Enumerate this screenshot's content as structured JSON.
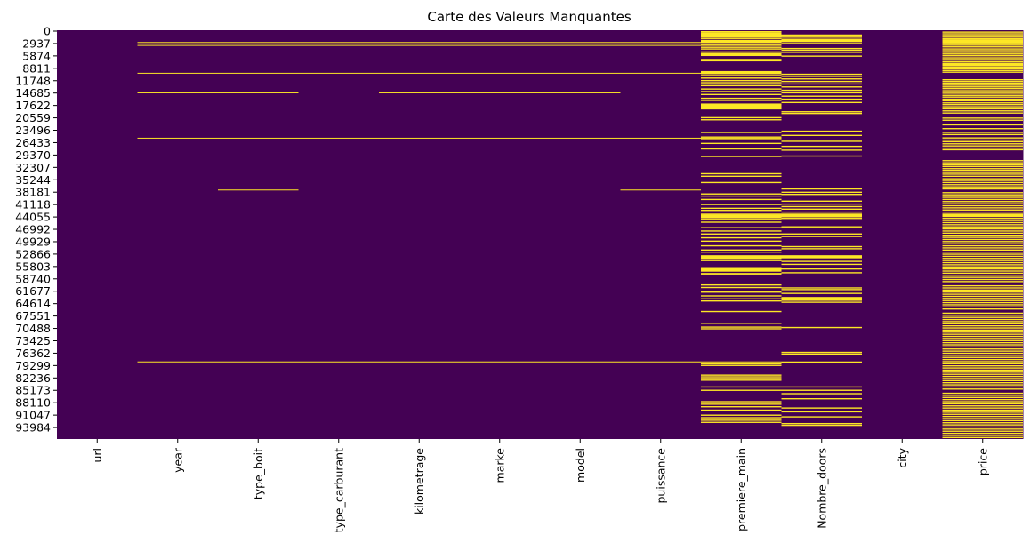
{
  "chart_data": {
    "type": "heatmap",
    "title": "Carte des Valeurs Manquantes",
    "columns": [
      "url",
      "year",
      "type_boit",
      "type_carburant",
      "kilometrage",
      "marke",
      "model",
      "puissance",
      "premiere_main",
      "Nombre_doors",
      "city",
      "price"
    ],
    "row_count": 97000,
    "y_tick_labels": [
      "0",
      "2937",
      "5874",
      "8811",
      "11748",
      "14685",
      "17622",
      "20559",
      "23496",
      "26433",
      "29370",
      "32307",
      "35244",
      "38181",
      "41118",
      "44055",
      "46992",
      "49929",
      "52866",
      "55803",
      "58740",
      "61677",
      "64614",
      "67551",
      "70488",
      "73425",
      "76362",
      "79299",
      "82236",
      "85173",
      "88110",
      "91047",
      "93984"
    ],
    "legend": "none",
    "colors": {
      "present": "#440154",
      "missing": "#fde725"
    },
    "missing_bands": [
      {
        "row": 2800,
        "columns": [
          "year",
          "type_boit",
          "type_carburant",
          "kilometrage",
          "marke",
          "model",
          "puissance",
          "premiere_main"
        ]
      },
      {
        "row": 3500,
        "columns": [
          "year",
          "type_boit",
          "type_carburant",
          "kilometrage",
          "marke",
          "model",
          "puissance",
          "premiere_main"
        ]
      },
      {
        "row": 10100,
        "columns": [
          "year",
          "type_boit",
          "type_carburant",
          "kilometrage",
          "marke",
          "model",
          "puissance",
          "premiere_main"
        ]
      },
      {
        "row": 14750,
        "columns": [
          "year",
          "type_boit"
        ]
      },
      {
        "row": 14750,
        "columns": [
          "kilometrage",
          "marke",
          "model"
        ]
      },
      {
        "row": 25500,
        "columns": [
          "year",
          "type_boit",
          "type_carburant",
          "kilometrage",
          "marke",
          "model",
          "puissance",
          "premiere_main"
        ]
      },
      {
        "row": 37800,
        "columns": [
          "type_boit"
        ]
      },
      {
        "row": 37800,
        "columns": [
          "puissance"
        ]
      },
      {
        "row": 78600,
        "columns": [
          "year",
          "type_boit",
          "type_carburant",
          "kilometrage",
          "marke",
          "model",
          "puissance",
          "premiere_main"
        ]
      }
    ],
    "column_missing_rows": {
      "premiere_main": [
        200,
        500,
        800,
        1300,
        1800,
        2300,
        3200,
        3900,
        4300,
        5000,
        5500,
        6800,
        7100,
        9800,
        10100,
        10600,
        11200,
        11800,
        12300,
        13000,
        13800,
        14400,
        15100,
        16000,
        16500,
        17500,
        17900,
        18100,
        18500,
        20600,
        21100,
        24100,
        25200,
        25800,
        26700,
        28000,
        29800,
        33900,
        34500,
        36000,
        38700,
        39200,
        40000,
        41200,
        42100,
        42600,
        43500,
        43800,
        44200,
        44600,
        45400,
        46700,
        47500,
        48200,
        49100,
        49900,
        51000,
        52000,
        52500,
        53700,
        54000,
        54500,
        56200,
        56700,
        57000,
        57600,
        57900,
        60300,
        60900,
        62000,
        62900,
        63600,
        64100,
        66600,
        69400,
        70300,
        70700,
        79000,
        79400,
        81700,
        82100,
        82500,
        82900,
        84500,
        85300,
        88000,
        88600,
        89200,
        90000,
        91200,
        91800,
        92400,
        92900
      ],
      "Nombre_doors": [
        1000,
        1500,
        2000,
        2400,
        3000,
        4200,
        4600,
        5100,
        6000,
        10300,
        10800,
        11400,
        12000,
        12600,
        13300,
        14100,
        14700,
        15500,
        16200,
        17000,
        19200,
        19600,
        23800,
        24800,
        26200,
        27400,
        28300,
        29700,
        37500,
        38300,
        38800,
        40400,
        41100,
        41700,
        42300,
        43000,
        43500,
        43800,
        44100,
        44500,
        46500,
        48200,
        48800,
        51200,
        51700,
        54700,
        55400,
        56500,
        57400,
        61000,
        61400,
        62300,
        63300,
        63800,
        64400,
        70400,
        76300,
        76700,
        78600,
        84500,
        85300,
        86100,
        87300,
        89500,
        90400,
        91600,
        93200,
        93600
      ],
      "price": [
        300,
        700,
        1100,
        1500,
        1900,
        2200,
        2600,
        3000,
        3400,
        3800,
        4300,
        4700,
        5100,
        5500,
        5900,
        6400,
        6800,
        7300,
        7700,
        8100,
        8600,
        9000,
        9400,
        9800,
        11600,
        12000,
        12400,
        12900,
        13300,
        13700,
        14200,
        14800,
        15300,
        15700,
        16200,
        16600,
        17100,
        17500,
        18000,
        18500,
        19000,
        19500,
        20700,
        21200,
        22300,
        23200,
        24100,
        24600,
        25400,
        25900,
        26300,
        26800,
        27300,
        27800,
        28200,
        30800,
        31300,
        31800,
        32200,
        32700,
        33100,
        33600,
        34000,
        34500,
        35100,
        35500,
        36000,
        36500,
        37000,
        37500,
        38400,
        38900,
        39500,
        40000,
        40500,
        41000,
        41500,
        42000,
        42500,
        43000,
        43500,
        44000,
        44500,
        45000,
        45500,
        46000,
        46500,
        47000,
        47500,
        48000,
        48500,
        49000,
        49500,
        50000,
        50500,
        51000,
        51500,
        52000,
        52500,
        53000,
        53500,
        54000,
        54500,
        55000,
        55500,
        56000,
        56500,
        57000,
        57500,
        58000,
        58500,
        59000,
        59500,
        60500,
        61000,
        61500,
        62000,
        62500,
        63000,
        63500,
        64000,
        64500,
        65000,
        65500,
        66000,
        67000,
        67500,
        68000,
        68500,
        69000,
        69500,
        70000,
        70500,
        71000,
        71500,
        72000,
        72500,
        73000,
        73500,
        74000,
        74500,
        75000,
        75500,
        76000,
        76500,
        77000,
        77500,
        78000,
        78500,
        79000,
        79500,
        80000,
        80500,
        81000,
        81500,
        82000,
        82500,
        83000,
        83500,
        84000,
        84500,
        85000,
        86000,
        86500,
        87000,
        87500,
        88000,
        88500,
        89000,
        89500,
        90000,
        90500,
        91000,
        91500,
        92000,
        92500,
        93000,
        93500,
        94000,
        94500,
        95000,
        95500,
        96000,
        96500
      ]
    },
    "heavy_bands": {
      "premiere_main": [
        850,
        1300,
        2600,
        5700,
        10000,
        17700,
        44100,
        53700,
        56700
      ],
      "Nombre_doors": [
        2400,
        43900,
        53700,
        63800
      ],
      "price": [
        2600,
        8100,
        43900
      ]
    }
  }
}
